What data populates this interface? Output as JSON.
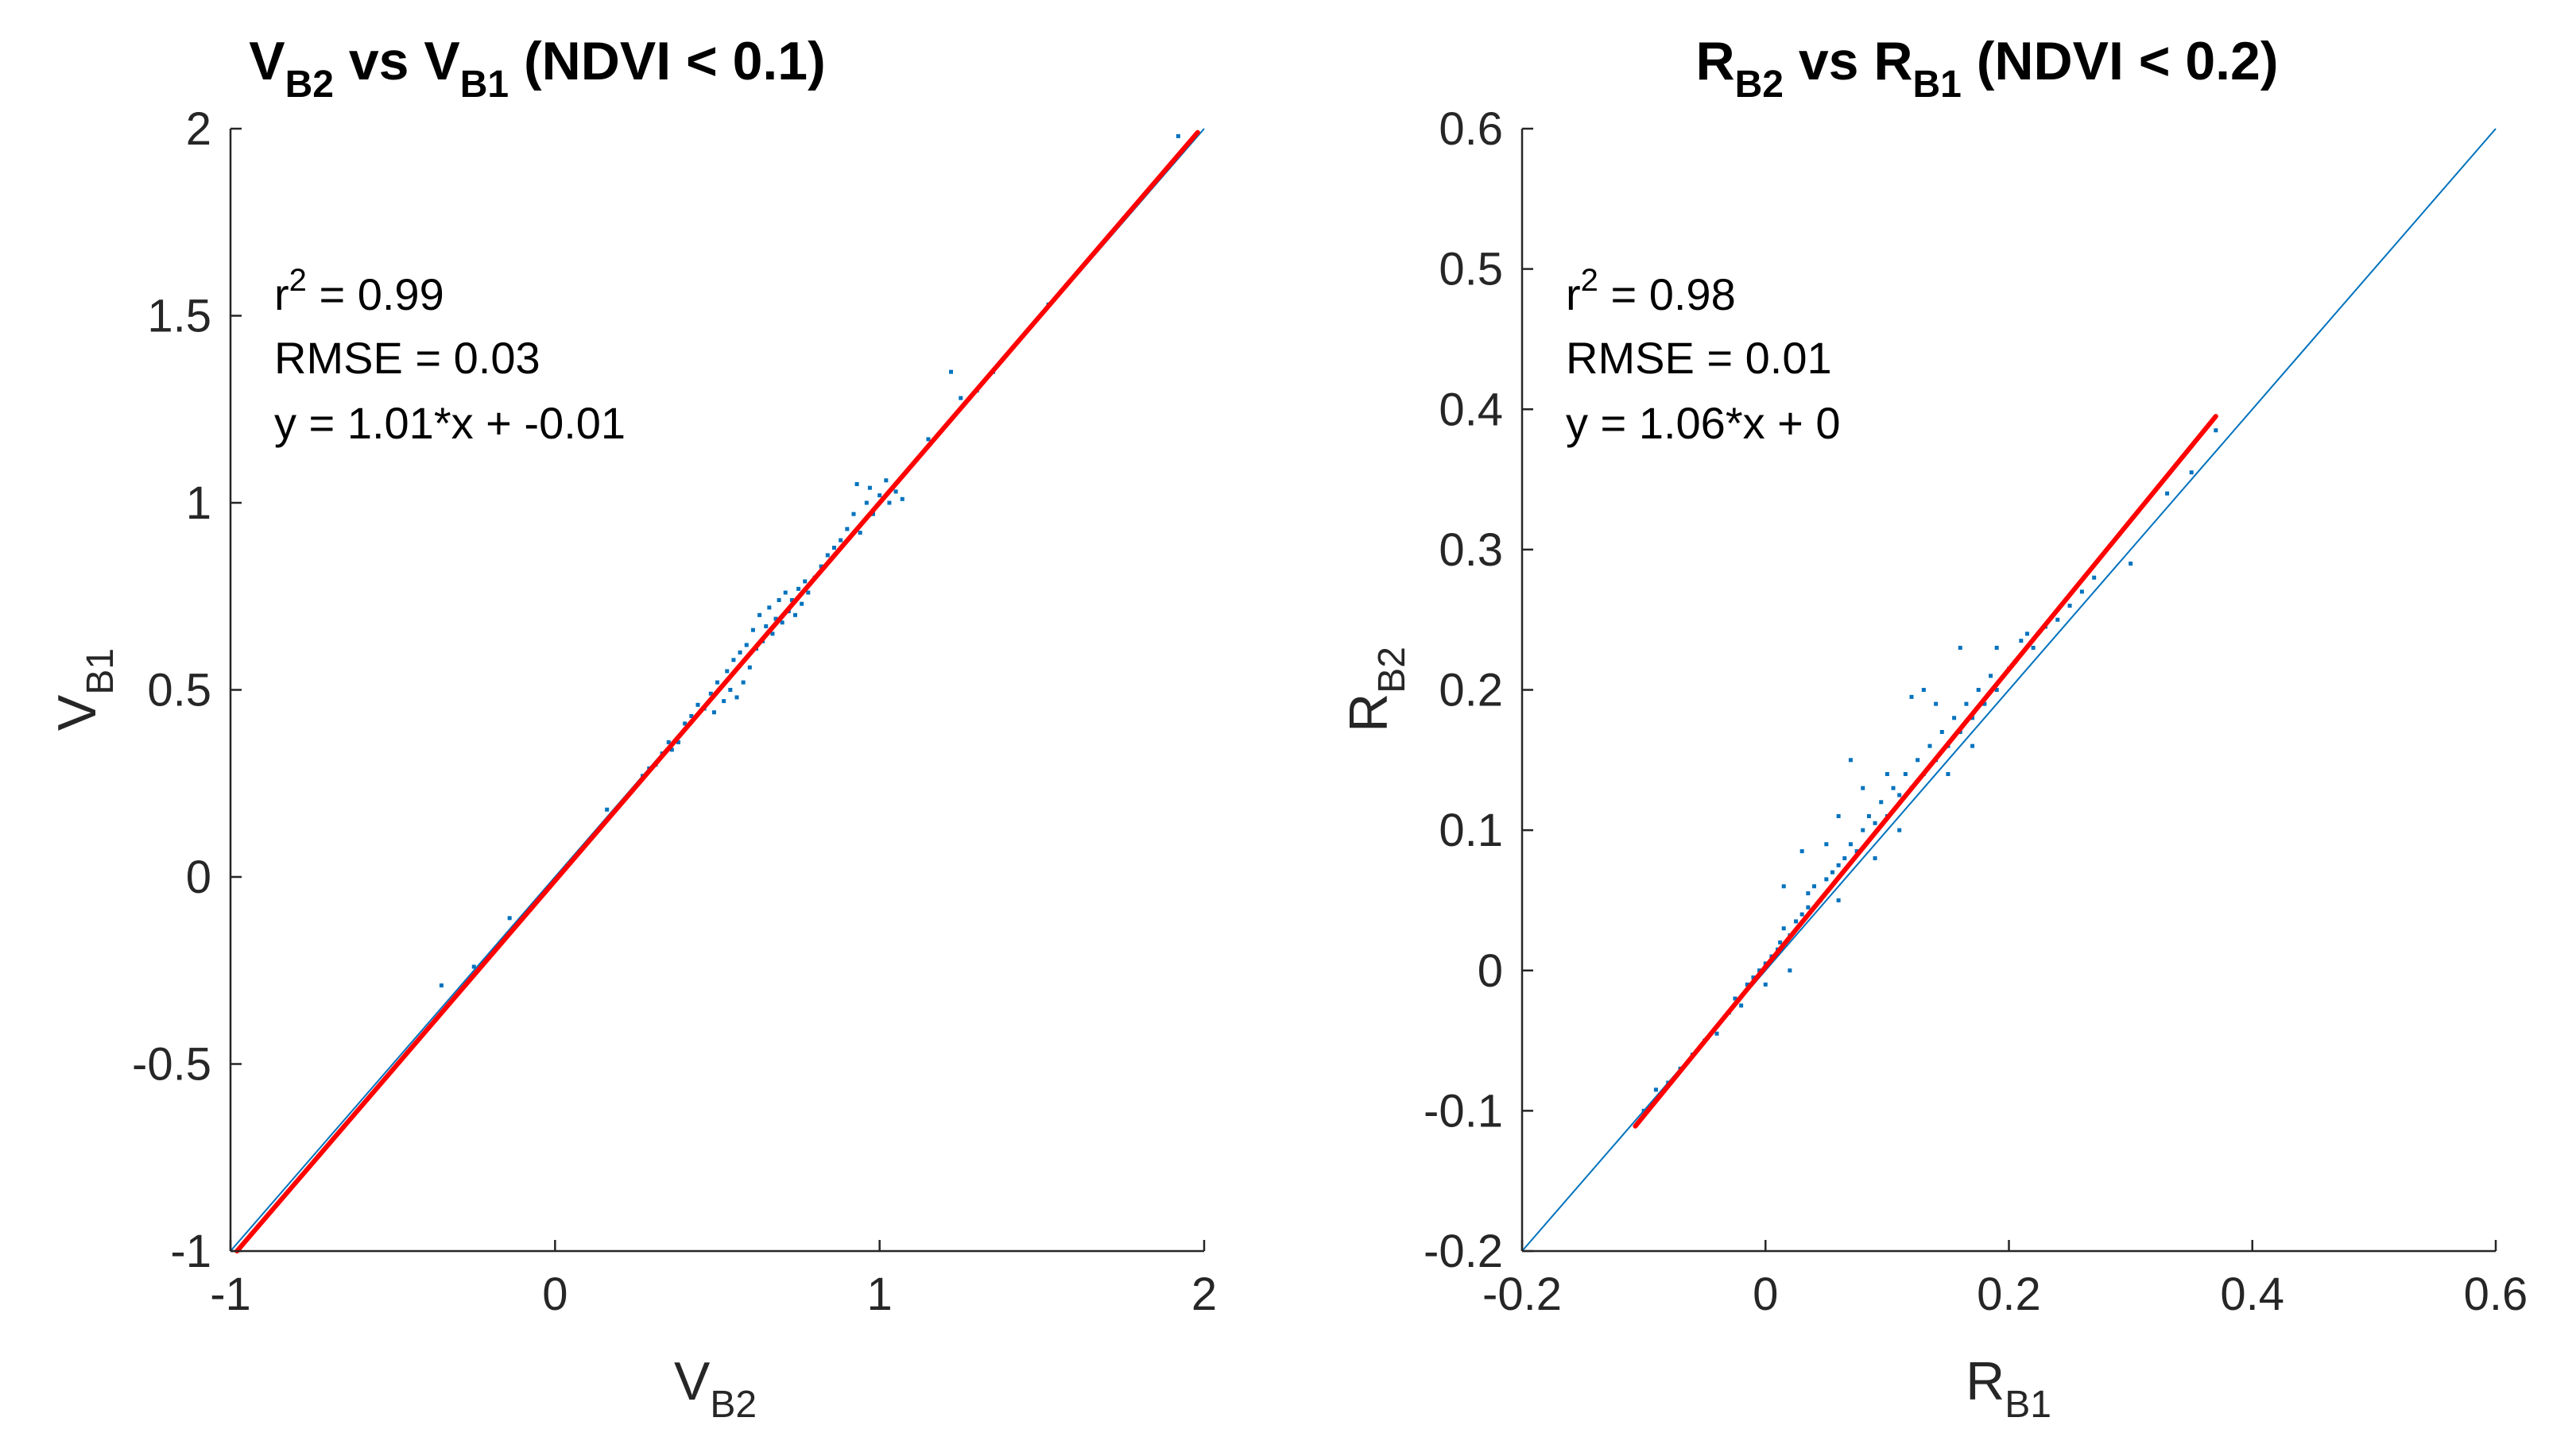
{
  "colors": {
    "scatter": "#0072BD",
    "fit": "#FF0000",
    "identity": "#0072BD",
    "axis": "#262626"
  },
  "chart_data": [
    {
      "type": "scatter",
      "title": {
        "main": "V",
        "sub1": "B2",
        "mid": " vs V",
        "sub2": "B1",
        "tail": " (NDVI < 0.1)"
      },
      "xlabel": {
        "main": "V",
        "sub": "B2"
      },
      "ylabel": {
        "main": "V",
        "sub": "B1"
      },
      "xlim": [
        -1,
        2
      ],
      "ylim": [
        -1,
        2
      ],
      "xticks": [
        -1,
        0,
        1,
        2
      ],
      "xtick_labels": [
        "-1",
        "0",
        "1",
        "2"
      ],
      "yticks": [
        -1,
        -0.5,
        0,
        0.5,
        1,
        1.5,
        2
      ],
      "ytick_labels": [
        "-1",
        "-0.5",
        "0",
        "0.5",
        "1",
        "1.5",
        "2"
      ],
      "stats": {
        "r2_label": "r",
        "r2_exp": "2",
        "r2_value": " = 0.99",
        "rmse": "RMSE = 0.03",
        "equation": "y = 1.01*x + -0.01"
      },
      "identity_line": {
        "x": [
          -1,
          2
        ],
        "y": [
          -1,
          2
        ]
      },
      "fit_line": {
        "x": [
          -0.98,
          1.98
        ],
        "y": [
          -1.0,
          1.99
        ]
      },
      "points": [
        [
          -0.35,
          -0.29
        ],
        [
          -0.25,
          -0.24
        ],
        [
          -0.14,
          -0.11
        ],
        [
          0.16,
          0.18
        ],
        [
          0.27,
          0.27
        ],
        [
          0.29,
          0.29
        ],
        [
          0.31,
          0.3
        ],
        [
          0.33,
          0.33
        ],
        [
          0.35,
          0.36
        ],
        [
          0.36,
          0.34
        ],
        [
          0.38,
          0.36
        ],
        [
          0.4,
          0.41
        ],
        [
          0.42,
          0.43
        ],
        [
          0.44,
          0.46
        ],
        [
          0.46,
          0.45
        ],
        [
          0.48,
          0.49
        ],
        [
          0.49,
          0.44
        ],
        [
          0.5,
          0.52
        ],
        [
          0.52,
          0.47
        ],
        [
          0.53,
          0.55
        ],
        [
          0.54,
          0.5
        ],
        [
          0.55,
          0.58
        ],
        [
          0.56,
          0.48
        ],
        [
          0.57,
          0.6
        ],
        [
          0.58,
          0.52
        ],
        [
          0.59,
          0.62
        ],
        [
          0.6,
          0.56
        ],
        [
          0.61,
          0.66
        ],
        [
          0.62,
          0.61
        ],
        [
          0.63,
          0.7
        ],
        [
          0.64,
          0.63
        ],
        [
          0.65,
          0.67
        ],
        [
          0.66,
          0.72
        ],
        [
          0.67,
          0.65
        ],
        [
          0.68,
          0.69
        ],
        [
          0.69,
          0.74
        ],
        [
          0.7,
          0.68
        ],
        [
          0.71,
          0.76
        ],
        [
          0.72,
          0.71
        ],
        [
          0.73,
          0.74
        ],
        [
          0.74,
          0.7
        ],
        [
          0.75,
          0.77
        ],
        [
          0.76,
          0.73
        ],
        [
          0.77,
          0.79
        ],
        [
          0.78,
          0.76
        ],
        [
          0.8,
          0.8
        ],
        [
          0.82,
          0.83
        ],
        [
          0.84,
          0.86
        ],
        [
          0.86,
          0.88
        ],
        [
          0.88,
          0.9
        ],
        [
          0.9,
          0.93
        ],
        [
          0.92,
          0.97
        ],
        [
          0.93,
          1.05
        ],
        [
          0.94,
          0.92
        ],
        [
          0.96,
          1.0
        ],
        [
          0.97,
          1.04
        ],
        [
          0.98,
          0.97
        ],
        [
          1.0,
          1.02
        ],
        [
          1.02,
          1.06
        ],
        [
          1.03,
          1.0
        ],
        [
          1.05,
          1.03
        ],
        [
          1.07,
          1.01
        ],
        [
          1.15,
          1.17
        ],
        [
          1.22,
          1.35
        ],
        [
          1.25,
          1.28
        ],
        [
          1.3,
          1.3
        ],
        [
          1.35,
          1.35
        ],
        [
          1.52,
          1.53
        ],
        [
          1.92,
          1.98
        ]
      ]
    },
    {
      "type": "scatter",
      "title": {
        "main": "R",
        "sub1": "B2",
        "mid": " vs R",
        "sub2": "B1",
        "tail": " (NDVI < 0.2)"
      },
      "xlabel": {
        "main": "R",
        "sub": "B1"
      },
      "ylabel": {
        "main": "R",
        "sub": "B2"
      },
      "xlim": [
        -0.2,
        0.6
      ],
      "ylim": [
        -0.2,
        0.6
      ],
      "xticks": [
        -0.2,
        0,
        0.2,
        0.4,
        0.6
      ],
      "xtick_labels": [
        "-0.2",
        "0",
        "0.2",
        "0.4",
        "0.6"
      ],
      "yticks": [
        -0.2,
        -0.1,
        0,
        0.1,
        0.2,
        0.3,
        0.4,
        0.5,
        0.6
      ],
      "ytick_labels": [
        "-0.2",
        "-0.1",
        "0",
        "0.1",
        "0.2",
        "0.3",
        "0.4",
        "0.5",
        "0.6"
      ],
      "stats": {
        "r2_label": "r",
        "r2_exp": "2",
        "r2_value": " = 0.98",
        "rmse": "RMSE = 0.01",
        "equation": "y = 1.06*x + 0"
      },
      "identity_line": {
        "x": [
          -0.2,
          0.6
        ],
        "y": [
          -0.2,
          0.6
        ]
      },
      "fit_line": {
        "x": [
          -0.107,
          0.37
        ],
        "y": [
          -0.111,
          0.395
        ]
      },
      "points": [
        [
          -0.1,
          -0.1
        ],
        [
          -0.09,
          -0.085
        ],
        [
          -0.08,
          -0.08
        ],
        [
          -0.07,
          -0.07
        ],
        [
          -0.06,
          -0.06
        ],
        [
          -0.05,
          -0.05
        ],
        [
          -0.04,
          -0.045
        ],
        [
          -0.03,
          -0.03
        ],
        [
          -0.025,
          -0.02
        ],
        [
          -0.02,
          -0.025
        ],
        [
          -0.015,
          -0.01
        ],
        [
          -0.01,
          -0.005
        ],
        [
          -0.005,
          0.0
        ],
        [
          0.0,
          0.005
        ],
        [
          0.005,
          0.01
        ],
        [
          0.01,
          0.015
        ],
        [
          0.012,
          0.02
        ],
        [
          0.015,
          0.03
        ],
        [
          0.02,
          0.025
        ],
        [
          0.025,
          0.035
        ],
        [
          0.03,
          0.04
        ],
        [
          0.035,
          0.045
        ],
        [
          0.04,
          0.06
        ],
        [
          0.045,
          0.05
        ],
        [
          0.05,
          0.065
        ],
        [
          0.055,
          0.07
        ],
        [
          0.06,
          0.075
        ],
        [
          0.065,
          0.08
        ],
        [
          0.07,
          0.09
        ],
        [
          0.075,
          0.085
        ],
        [
          0.08,
          0.1
        ],
        [
          0.085,
          0.11
        ],
        [
          0.09,
          0.105
        ],
        [
          0.095,
          0.12
        ],
        [
          0.1,
          0.11
        ],
        [
          0.105,
          0.13
        ],
        [
          0.11,
          0.125
        ],
        [
          0.115,
          0.14
        ],
        [
          0.12,
          0.13
        ],
        [
          0.125,
          0.15
        ],
        [
          0.13,
          0.14
        ],
        [
          0.135,
          0.16
        ],
        [
          0.14,
          0.15
        ],
        [
          0.145,
          0.17
        ],
        [
          0.15,
          0.16
        ],
        [
          0.155,
          0.18
        ],
        [
          0.16,
          0.17
        ],
        [
          0.165,
          0.19
        ],
        [
          0.17,
          0.18
        ],
        [
          0.175,
          0.2
        ],
        [
          0.18,
          0.19
        ],
        [
          0.185,
          0.21
        ],
        [
          0.19,
          0.2
        ],
        [
          0.2,
          0.215
        ],
        [
          0.205,
          0.22
        ],
        [
          0.21,
          0.235
        ],
        [
          0.215,
          0.24
        ],
        [
          0.22,
          0.23
        ],
        [
          0.23,
          0.245
        ],
        [
          0.24,
          0.25
        ],
        [
          0.25,
          0.26
        ],
        [
          0.26,
          0.27
        ],
        [
          0.27,
          0.28
        ],
        [
          0.3,
          0.29
        ],
        [
          0.33,
          0.34
        ],
        [
          0.35,
          0.355
        ],
        [
          0.37,
          0.385
        ],
        [
          0.015,
          0.06
        ],
        [
          0.03,
          0.085
        ],
        [
          0.06,
          0.11
        ],
        [
          0.07,
          0.15
        ],
        [
          0.08,
          0.13
        ],
        [
          0.12,
          0.195
        ],
        [
          0.14,
          0.19
        ],
        [
          0.13,
          0.2
        ],
        [
          0.16,
          0.23
        ],
        [
          0.19,
          0.23
        ],
        [
          0.1,
          0.14
        ],
        [
          0.05,
          0.09
        ],
        [
          0.035,
          0.055
        ],
        [
          0.0,
          -0.01
        ],
        [
          0.02,
          0.0
        ],
        [
          0.06,
          0.05
        ],
        [
          0.09,
          0.08
        ],
        [
          0.11,
          0.1
        ],
        [
          0.15,
          0.14
        ],
        [
          0.17,
          0.16
        ]
      ]
    }
  ]
}
